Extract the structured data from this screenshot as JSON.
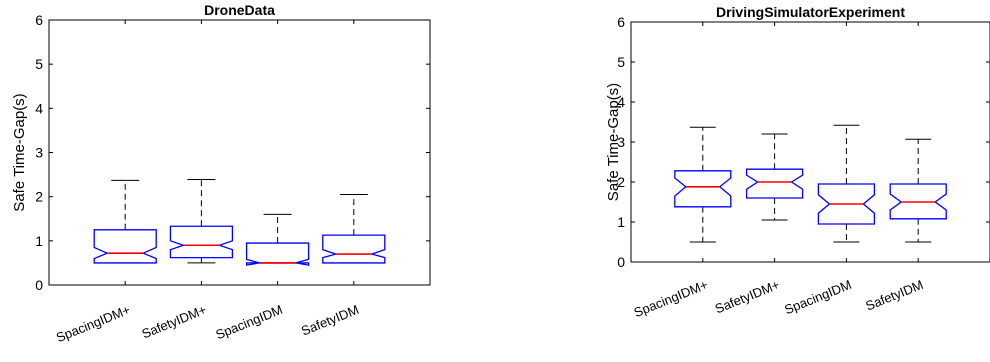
{
  "chart_data": [
    {
      "type": "boxplot",
      "title": "DroneData",
      "xlabel": "",
      "ylabel": "Safe Time-Gap(s)",
      "ylim": [
        0,
        6
      ],
      "yticks": [
        0,
        1,
        2,
        3,
        4,
        5,
        6
      ],
      "grid": false,
      "notched": true,
      "categories": [
        "SpacingIDM+",
        "SafetyIDM+",
        "SpacingIDM",
        "SafetyIDM"
      ],
      "boxes": [
        {
          "whisker_low": 0.5,
          "q1": 0.5,
          "median": 0.72,
          "q3": 1.25,
          "whisker_high": 2.37,
          "notch_low": 0.6,
          "notch_high": 0.85
        },
        {
          "whisker_low": 0.5,
          "q1": 0.62,
          "median": 0.9,
          "q3": 1.33,
          "whisker_high": 2.39,
          "notch_low": 0.8,
          "notch_high": 1.0
        },
        {
          "whisker_low": 0.5,
          "q1": 0.5,
          "median": 0.5,
          "q3": 0.95,
          "whisker_high": 1.6,
          "notch_low": 0.45,
          "notch_high": 0.58
        },
        {
          "whisker_low": 0.5,
          "q1": 0.5,
          "median": 0.7,
          "q3": 1.13,
          "whisker_high": 2.05,
          "notch_low": 0.62,
          "notch_high": 0.8
        }
      ]
    },
    {
      "type": "boxplot",
      "title": "DrivingSimulatorExperiment",
      "xlabel": "",
      "ylabel": "Safe Time-Gap(s)",
      "ylim": [
        0,
        6
      ],
      "yticks": [
        0,
        1,
        2,
        3,
        4,
        5,
        6
      ],
      "grid": false,
      "notched": true,
      "categories": [
        "SpacingIDM+",
        "SafetyIDM+",
        "SpacingIDM",
        "SafetyIDM"
      ],
      "boxes": [
        {
          "whisker_low": 0.5,
          "q1": 1.38,
          "median": 1.88,
          "q3": 2.28,
          "whisker_high": 3.37,
          "notch_low": 1.65,
          "notch_high": 2.1
        },
        {
          "whisker_low": 1.05,
          "q1": 1.6,
          "median": 2.0,
          "q3": 2.32,
          "whisker_high": 3.2,
          "notch_low": 1.82,
          "notch_high": 2.17
        },
        {
          "whisker_low": 0.5,
          "q1": 0.95,
          "median": 1.45,
          "q3": 1.95,
          "whisker_high": 3.42,
          "notch_low": 1.22,
          "notch_high": 1.68
        },
        {
          "whisker_low": 0.5,
          "q1": 1.08,
          "median": 1.5,
          "q3": 1.95,
          "whisker_high": 3.07,
          "notch_low": 1.3,
          "notch_high": 1.7
        }
      ]
    }
  ],
  "colors": {
    "box": "#0000ff",
    "median": "#ff0000",
    "whisker": "#000000",
    "axes": "#000000"
  }
}
